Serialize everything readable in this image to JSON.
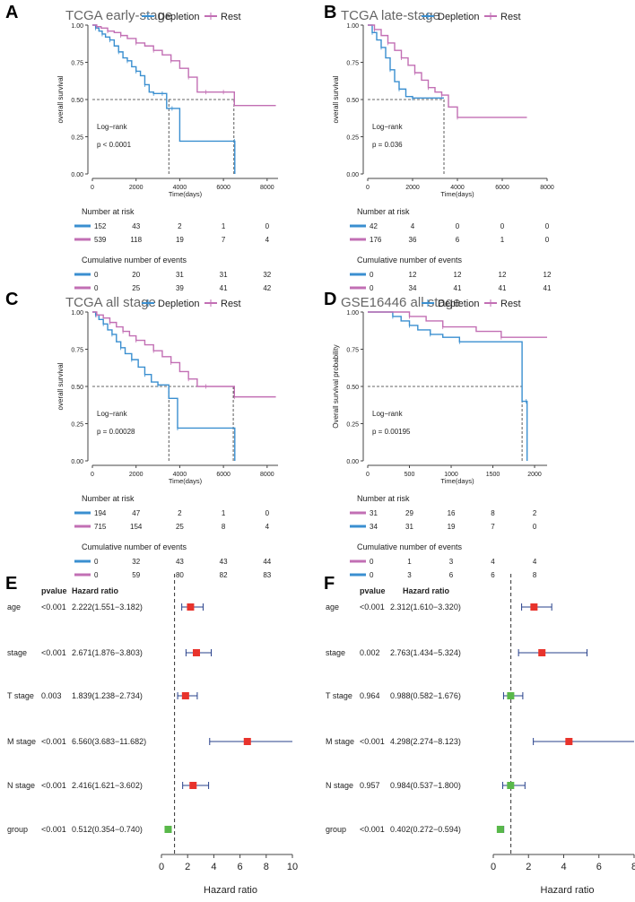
{
  "colors": {
    "depletion": "#3a8fd0",
    "rest": "#c26fb4",
    "red_marker": "#e8332c",
    "green_marker": "#59b84a",
    "axis": "#444444",
    "ref_line": "#333333"
  },
  "chart_data": [
    {
      "id": "A",
      "type": "line",
      "subtype": "kaplan-meier",
      "panel_label": "A",
      "title": "TCGA early-stage",
      "xlabel": "Time(days)",
      "ylabel": "overall survival",
      "xlim": [
        0,
        8500
      ],
      "ylim": [
        0,
        1
      ],
      "xticks": [
        0,
        2000,
        4000,
        6000,
        8000
      ],
      "yticks": [
        "0.00",
        "0.25",
        "0.50",
        "0.75",
        "1.00"
      ],
      "legend": [
        "Depletion",
        "Rest"
      ],
      "legend_position": "top",
      "annotation": [
        "Log−rank",
        "p < 0.0001"
      ],
      "series": [
        {
          "name": "Depletion",
          "x": [
            0,
            150,
            300,
            450,
            600,
            800,
            1000,
            1200,
            1400,
            1600,
            1800,
            2000,
            2200,
            2400,
            2600,
            2800,
            3000,
            3200,
            3400,
            3650,
            4000,
            6500,
            6520
          ],
          "y": [
            1.0,
            0.98,
            0.96,
            0.94,
            0.92,
            0.9,
            0.86,
            0.82,
            0.78,
            0.76,
            0.72,
            0.69,
            0.66,
            0.6,
            0.55,
            0.54,
            0.54,
            0.54,
            0.44,
            0.44,
            0.22,
            0.22,
            0.0
          ]
        },
        {
          "name": "Rest",
          "x": [
            0,
            200,
            400,
            700,
            1000,
            1300,
            1600,
            2000,
            2400,
            2800,
            3200,
            3600,
            4000,
            4400,
            4800,
            5200,
            5600,
            6000,
            6500,
            8400
          ],
          "y": [
            1.0,
            0.99,
            0.98,
            0.96,
            0.95,
            0.93,
            0.91,
            0.88,
            0.86,
            0.83,
            0.8,
            0.76,
            0.71,
            0.65,
            0.55,
            0.55,
            0.55,
            0.55,
            0.46,
            0.46
          ]
        }
      ],
      "median_lines": [
        3500,
        6480
      ],
      "risk_table": {
        "title": "Number at risk",
        "rows": [
          {
            "series": "Depletion",
            "values": [
              "152",
              "43",
              "2",
              "1",
              "0"
            ]
          },
          {
            "series": "Rest",
            "values": [
              "539",
              "118",
              "19",
              "7",
              "4"
            ]
          }
        ]
      },
      "events_table": {
        "title": "Cumulative number of events",
        "rows": [
          {
            "series": "Depletion",
            "values": [
              "0",
              "20",
              "31",
              "31",
              "32"
            ]
          },
          {
            "series": "Rest",
            "values": [
              "0",
              "25",
              "39",
              "41",
              "42"
            ]
          }
        ]
      }
    },
    {
      "id": "B",
      "type": "line",
      "subtype": "kaplan-meier",
      "panel_label": "B",
      "title": "TCGA late-stage",
      "xlabel": "Time(days)",
      "ylabel": "overall survival",
      "xlim": [
        0,
        8000
      ],
      "ylim": [
        0,
        1
      ],
      "xticks": [
        0,
        2000,
        4000,
        6000,
        8000
      ],
      "yticks": [
        "0.00",
        "0.25",
        "0.50",
        "0.75",
        "1.00"
      ],
      "legend": [
        "Depletion",
        "Rest"
      ],
      "legend_position": "top",
      "annotation": [
        "Log−rank",
        "p = 0.036"
      ],
      "series": [
        {
          "name": "Depletion",
          "x": [
            0,
            200,
            400,
            600,
            800,
            1000,
            1200,
            1400,
            1700,
            2000,
            3400
          ],
          "y": [
            1.0,
            0.95,
            0.9,
            0.85,
            0.78,
            0.7,
            0.62,
            0.57,
            0.52,
            0.51,
            0.51
          ]
        },
        {
          "name": "Rest",
          "x": [
            0,
            300,
            600,
            900,
            1200,
            1500,
            1800,
            2100,
            2400,
            2700,
            3000,
            3300,
            3600,
            4000,
            7100
          ],
          "y": [
            1.0,
            0.97,
            0.93,
            0.88,
            0.83,
            0.78,
            0.73,
            0.68,
            0.63,
            0.58,
            0.55,
            0.53,
            0.45,
            0.38,
            0.38
          ]
        }
      ],
      "median_lines": [
        3400
      ],
      "risk_table": {
        "title": "Number at risk",
        "rows": [
          {
            "series": "Depletion",
            "values": [
              "42",
              "4",
              "0",
              "0",
              "0"
            ]
          },
          {
            "series": "Rest",
            "values": [
              "176",
              "36",
              "6",
              "1",
              "0"
            ]
          }
        ]
      },
      "events_table": {
        "title": "Cumulative number of events",
        "rows": [
          {
            "series": "Depletion",
            "values": [
              "0",
              "12",
              "12",
              "12",
              "12"
            ]
          },
          {
            "series": "Rest",
            "values": [
              "0",
              "34",
              "41",
              "41",
              "41"
            ]
          }
        ]
      }
    },
    {
      "id": "C",
      "type": "line",
      "subtype": "kaplan-meier",
      "panel_label": "C",
      "title": "TCGA all stage",
      "xlabel": "Time(days)",
      "ylabel": "overall survival",
      "xlim": [
        0,
        8500
      ],
      "ylim": [
        0,
        1
      ],
      "xticks": [
        0,
        2000,
        4000,
        6000,
        8000
      ],
      "yticks": [
        "0.00",
        "0.25",
        "0.50",
        "0.75",
        "1.00"
      ],
      "legend": [
        "Depletion",
        "Rest"
      ],
      "legend_position": "top",
      "annotation": [
        "Log−rank",
        "p = 0.00028"
      ],
      "series": [
        {
          "name": "Depletion",
          "x": [
            0,
            150,
            300,
            500,
            700,
            900,
            1100,
            1300,
            1500,
            1800,
            2100,
            2400,
            2700,
            3000,
            3500,
            3900,
            6500,
            6520
          ],
          "y": [
            1.0,
            0.98,
            0.95,
            0.92,
            0.88,
            0.85,
            0.8,
            0.76,
            0.72,
            0.68,
            0.63,
            0.58,
            0.53,
            0.51,
            0.42,
            0.22,
            0.22,
            0.0
          ]
        },
        {
          "name": "Rest",
          "x": [
            0,
            200,
            500,
            800,
            1100,
            1400,
            1700,
            2000,
            2400,
            2800,
            3200,
            3600,
            4000,
            4400,
            4800,
            5200,
            6000,
            6500,
            8400
          ],
          "y": [
            1.0,
            0.98,
            0.96,
            0.93,
            0.9,
            0.87,
            0.84,
            0.81,
            0.78,
            0.74,
            0.7,
            0.66,
            0.6,
            0.55,
            0.5,
            0.5,
            0.5,
            0.43,
            0.43
          ]
        }
      ],
      "median_lines": [
        3500,
        6450
      ],
      "risk_table": {
        "title": "Number at risk",
        "rows": [
          {
            "series": "Depletion",
            "values": [
              "194",
              "47",
              "2",
              "1",
              "0"
            ]
          },
          {
            "series": "Rest",
            "values": [
              "715",
              "154",
              "25",
              "8",
              "4"
            ]
          }
        ]
      },
      "events_table": {
        "title": "Cumulative number of events",
        "rows": [
          {
            "series": "Depletion",
            "values": [
              "0",
              "32",
              "43",
              "43",
              "44"
            ]
          },
          {
            "series": "Rest",
            "values": [
              "0",
              "59",
              "80",
              "82",
              "83"
            ]
          }
        ]
      }
    },
    {
      "id": "D",
      "type": "line",
      "subtype": "kaplan-meier",
      "panel_label": "D",
      "title": "GSE16446 all stage",
      "xlabel": "Time(days)",
      "ylabel": "Overall survival probability",
      "xlim": [
        0,
        2150
      ],
      "ylim": [
        0,
        1
      ],
      "xticks": [
        0,
        500,
        1000,
        1500,
        2000
      ],
      "yticks": [
        "0.00",
        "0.25",
        "0.50",
        "0.75",
        "1.00"
      ],
      "legend": [
        "Depletion",
        "Rest"
      ],
      "legend_position": "top",
      "annotation": [
        "Log−rank",
        "p = 0.00195"
      ],
      "series": [
        {
          "name": "Depletion",
          "x": [
            0,
            300,
            400,
            500,
            600,
            750,
            900,
            1100,
            1850,
            1900,
            1910
          ],
          "y": [
            1.0,
            0.97,
            0.94,
            0.91,
            0.88,
            0.85,
            0.83,
            0.8,
            0.4,
            0.4,
            0.0
          ]
        },
        {
          "name": "Rest",
          "x": [
            0,
            500,
            700,
            900,
            1300,
            1600,
            2150
          ],
          "y": [
            1.0,
            0.97,
            0.94,
            0.9,
            0.87,
            0.83,
            0.83
          ]
        }
      ],
      "median_lines": [
        1850
      ],
      "risk_table": {
        "title": "Number at risk",
        "rows": [
          {
            "series": "Rest",
            "values": [
              "31",
              "29",
              "16",
              "8",
              "2"
            ]
          },
          {
            "series": "Depletion",
            "values": [
              "34",
              "31",
              "19",
              "7",
              "0"
            ]
          }
        ]
      },
      "events_table": {
        "title": "Cumulative number of events",
        "rows": [
          {
            "series": "Rest",
            "values": [
              "0",
              "1",
              "3",
              "4",
              "4"
            ]
          },
          {
            "series": "Depletion",
            "values": [
              "0",
              "3",
              "6",
              "6",
              "8"
            ]
          }
        ]
      }
    },
    {
      "id": "E",
      "type": "forest",
      "panel_label": "E",
      "xlabel": "Hazard ratio",
      "xlim": [
        0,
        10
      ],
      "xticks": [
        0,
        2,
        4,
        6,
        8,
        10
      ],
      "reference": 1,
      "headers": [
        "pvalue",
        "Hazard ratio"
      ],
      "rows": [
        {
          "label": "age",
          "pvalue": "<0.001",
          "hr_text": "2.222(1.551−3.182)",
          "hr": 2.222,
          "lo": 1.551,
          "hi": 3.182,
          "marker": "red"
        },
        {
          "label": "stage",
          "pvalue": "<0.001",
          "hr_text": "2.671(1.876−3.803)",
          "hr": 2.671,
          "lo": 1.876,
          "hi": 3.803,
          "marker": "red"
        },
        {
          "label": "T stage",
          "pvalue": "0.003",
          "hr_text": "1.839(1.238−2.734)",
          "hr": 1.839,
          "lo": 1.238,
          "hi": 2.734,
          "marker": "red"
        },
        {
          "label": "M stage",
          "pvalue": "<0.001",
          "hr_text": "6.560(3.683−11.682)",
          "hr": 6.56,
          "lo": 3.683,
          "hi": 11.682,
          "marker": "red"
        },
        {
          "label": "N stage",
          "pvalue": "<0.001",
          "hr_text": "2.416(1.621−3.602)",
          "hr": 2.416,
          "lo": 1.621,
          "hi": 3.602,
          "marker": "red"
        },
        {
          "label": "group",
          "pvalue": "<0.001",
          "hr_text": "0.512(0.354−0.740)",
          "hr": 0.512,
          "lo": 0.354,
          "hi": 0.74,
          "marker": "green"
        }
      ]
    },
    {
      "id": "F",
      "type": "forest",
      "panel_label": "F",
      "xlabel": "Hazard ratio",
      "xlim": [
        0,
        8
      ],
      "xticks": [
        0,
        2,
        4,
        6,
        8
      ],
      "reference": 1,
      "headers": [
        "pvalue",
        "Hazard ratio"
      ],
      "rows": [
        {
          "label": "age",
          "pvalue": "<0.001",
          "hr_text": "2.312(1.610−3.320)",
          "hr": 2.312,
          "lo": 1.61,
          "hi": 3.32,
          "marker": "red"
        },
        {
          "label": "stage",
          "pvalue": "0.002",
          "hr_text": "2.763(1.434−5.324)",
          "hr": 2.763,
          "lo": 1.434,
          "hi": 5.324,
          "marker": "red"
        },
        {
          "label": "T stage",
          "pvalue": "0.964",
          "hr_text": "0.988(0.582−1.676)",
          "hr": 0.988,
          "lo": 0.582,
          "hi": 1.676,
          "marker": "green"
        },
        {
          "label": "M stage",
          "pvalue": "<0.001",
          "hr_text": "4.298(2.274−8.123)",
          "hr": 4.298,
          "lo": 2.274,
          "hi": 8.123,
          "marker": "red"
        },
        {
          "label": "N stage",
          "pvalue": "0.957",
          "hr_text": "0.984(0.537−1.800)",
          "hr": 0.984,
          "lo": 0.537,
          "hi": 1.8,
          "marker": "green"
        },
        {
          "label": "group",
          "pvalue": "<0.001",
          "hr_text": "0.402(0.272−0.594)",
          "hr": 0.402,
          "lo": 0.272,
          "hi": 0.594,
          "marker": "green"
        }
      ]
    }
  ]
}
